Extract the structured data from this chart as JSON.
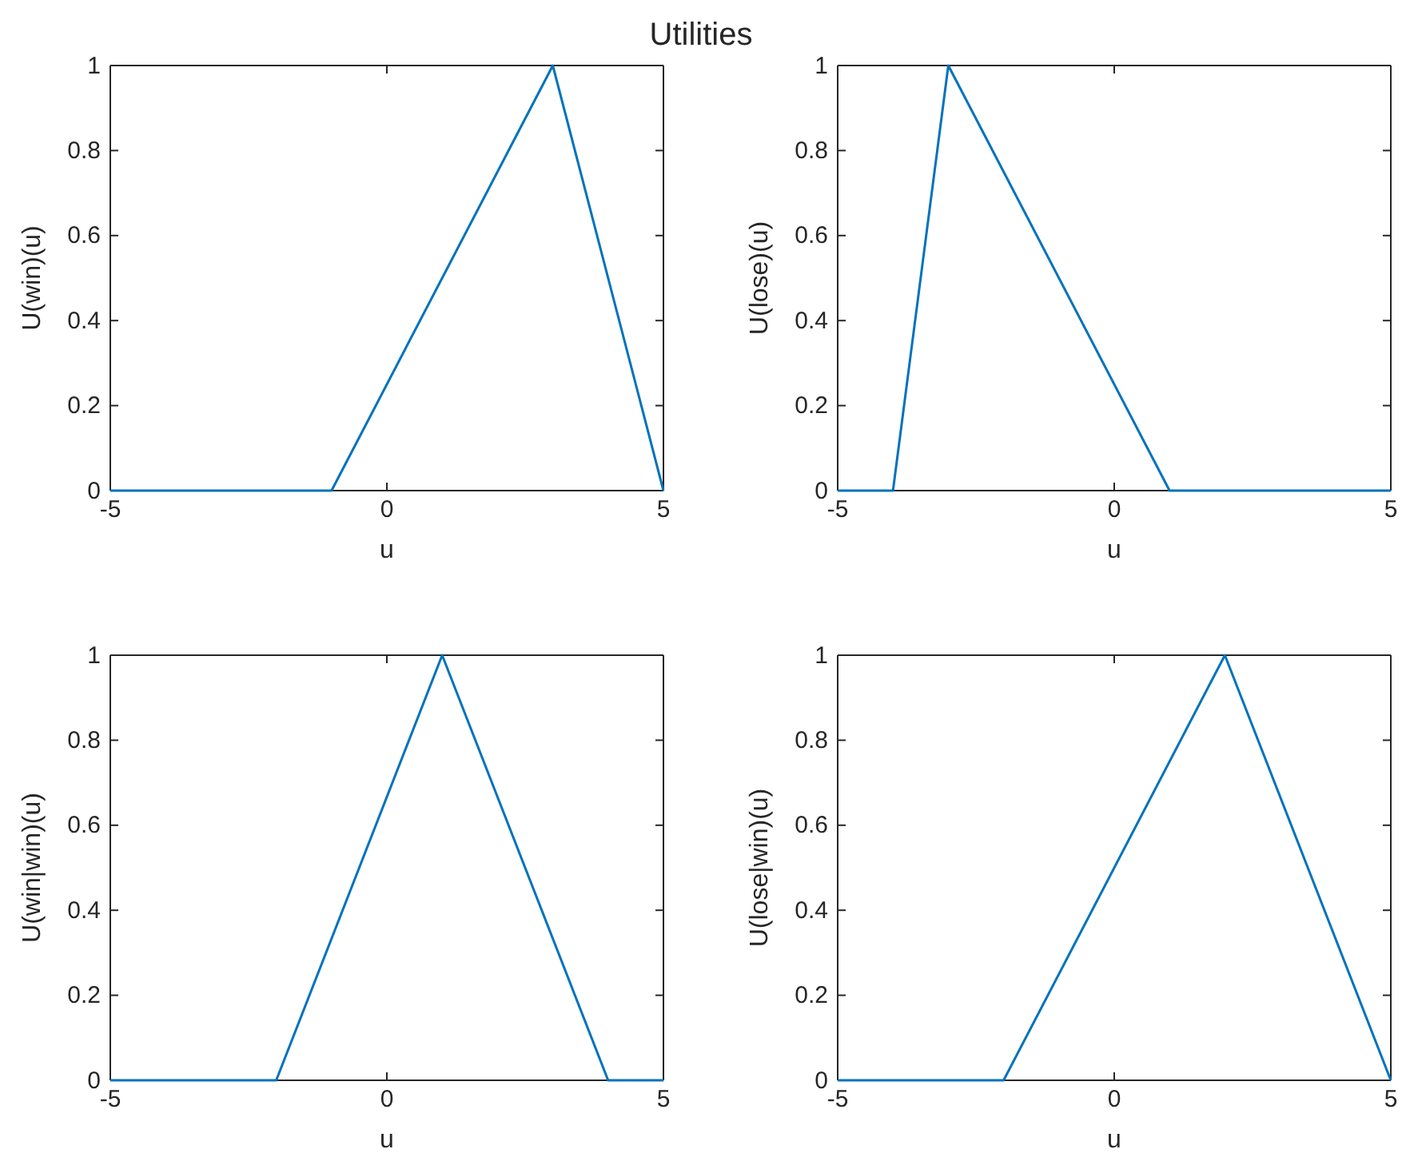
{
  "chart_data": [
    {
      "type": "line",
      "title": "Utilities",
      "xlabel": "u",
      "ylabel": "U(win)(u)",
      "xlim": [
        -5,
        5
      ],
      "ylim": [
        0,
        1
      ],
      "xticks": [
        -5,
        0,
        5
      ],
      "yticks": [
        0,
        0.2,
        0.4,
        0.6,
        0.8,
        1
      ],
      "series": [
        {
          "color": "#0072bd",
          "x": [
            -5,
            -1,
            3,
            5
          ],
          "values": [
            0,
            0,
            1,
            0
          ]
        }
      ]
    },
    {
      "type": "line",
      "xlabel": "u",
      "ylabel": "U(lose)(u)",
      "xlim": [
        -5,
        5
      ],
      "ylim": [
        0,
        1
      ],
      "xticks": [
        -5,
        0,
        5
      ],
      "yticks": [
        0,
        0.2,
        0.4,
        0.6,
        0.8,
        1
      ],
      "series": [
        {
          "color": "#0072bd",
          "x": [
            -5,
            -4,
            -3,
            1,
            5
          ],
          "values": [
            0,
            0,
            1,
            0,
            0
          ]
        }
      ]
    },
    {
      "type": "line",
      "xlabel": "u",
      "ylabel": "U(win|win)(u)",
      "xlim": [
        -5,
        5
      ],
      "ylim": [
        0,
        1
      ],
      "xticks": [
        -5,
        0,
        5
      ],
      "yticks": [
        0,
        0.2,
        0.4,
        0.6,
        0.8,
        1
      ],
      "series": [
        {
          "color": "#0072bd",
          "x": [
            -5,
            -2,
            1,
            4,
            5
          ],
          "values": [
            0,
            0,
            1,
            0,
            0
          ]
        }
      ]
    },
    {
      "type": "line",
      "xlabel": "u",
      "ylabel": "U(lose|win)(u)",
      "xlim": [
        -5,
        5
      ],
      "ylim": [
        0,
        1
      ],
      "xticks": [
        -5,
        0,
        5
      ],
      "yticks": [
        0,
        0.2,
        0.4,
        0.6,
        0.8,
        1
      ],
      "series": [
        {
          "color": "#0072bd",
          "x": [
            -5,
            -2,
            2,
            5
          ],
          "values": [
            0,
            0,
            1,
            0
          ]
        }
      ]
    }
  ]
}
